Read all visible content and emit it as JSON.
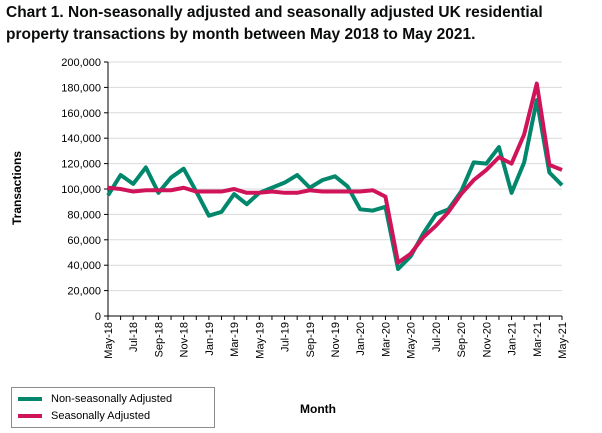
{
  "title": "Chart 1. Non-seasonally adjusted and seasonally adjusted UK residential property transactions by month between May 2018 to May 2021.",
  "chart_data": {
    "type": "line",
    "xlabel": "Month",
    "ylabel": "Transactions",
    "ylim": [
      0,
      200000
    ],
    "yticks": [
      "0",
      "20,000",
      "40,000",
      "60,000",
      "80,000",
      "100,000",
      "120,000",
      "140,000",
      "160,000",
      "180,000",
      "200,000"
    ],
    "x": [
      "May-18",
      "Jun-18",
      "Jul-18",
      "Aug-18",
      "Sep-18",
      "Oct-18",
      "Nov-18",
      "Dec-18",
      "Jan-19",
      "Feb-19",
      "Mar-19",
      "Apr-19",
      "May-19",
      "Jun-19",
      "Jul-19",
      "Aug-19",
      "Sep-19",
      "Oct-19",
      "Nov-19",
      "Dec-19",
      "Jan-20",
      "Feb-20",
      "Mar-20",
      "Apr-20",
      "May-20",
      "Jun-20",
      "Jul-20",
      "Aug-20",
      "Sep-20",
      "Oct-20",
      "Nov-20",
      "Dec-20",
      "Jan-21",
      "Feb-21",
      "Mar-21",
      "Apr-21",
      "May-21"
    ],
    "xtick_labels": [
      "May-18",
      "Jul-18",
      "Sep-18",
      "Nov-18",
      "Jan-19",
      "Mar-19",
      "May-19",
      "Jul-19",
      "Sep-19",
      "Nov-19",
      "Jan-20",
      "Mar-20",
      "May-20",
      "Jul-20",
      "Sep-20",
      "Nov-20",
      "Jan-21",
      "Mar-21",
      "May-21"
    ],
    "grid": "horizontal",
    "legend_position": "bottom-left",
    "series": [
      {
        "name": "Non-seasonally Adjusted",
        "color": "#00876c",
        "values": [
          95000,
          111000,
          104000,
          117000,
          97000,
          109000,
          116000,
          98000,
          79000,
          82000,
          96000,
          88000,
          97000,
          101000,
          105000,
          111000,
          101000,
          107000,
          110000,
          102000,
          84000,
          83000,
          86000,
          37000,
          47000,
          65000,
          80000,
          84000,
          98000,
          121000,
          120000,
          133000,
          97000,
          121000,
          170000,
          113000,
          103000
        ]
      },
      {
        "name": "Seasonally Adjusted",
        "color": "#d0145a",
        "values": [
          101000,
          100000,
          98000,
          99000,
          99000,
          99000,
          101000,
          98000,
          98000,
          98000,
          100000,
          97000,
          97000,
          98000,
          97000,
          97000,
          99000,
          98000,
          98000,
          98000,
          98000,
          99000,
          94000,
          42000,
          49000,
          62000,
          71000,
          82000,
          96000,
          107000,
          115000,
          125000,
          120000,
          143000,
          183000,
          119000,
          115000
        ]
      }
    ]
  }
}
